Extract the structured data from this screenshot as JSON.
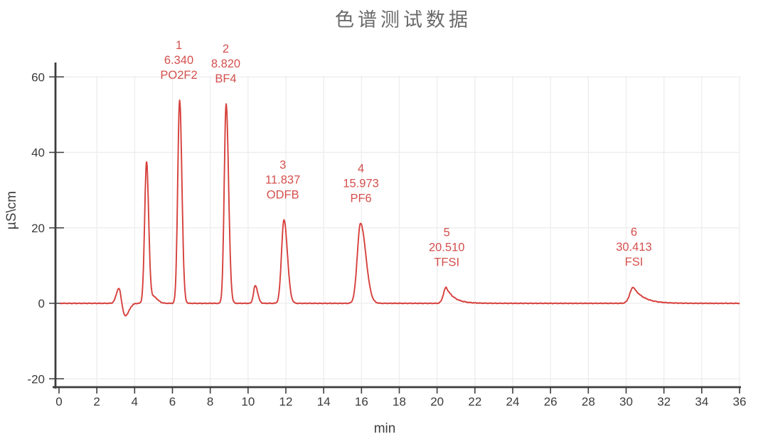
{
  "title": "色谱测试数据",
  "chart_data": {
    "type": "line",
    "title": "色谱测试数据",
    "xlabel": "min",
    "ylabel": "µS\\cm",
    "x_range": [
      0,
      36
    ],
    "y_range": [
      -22,
      64
    ],
    "x_ticks": [
      0,
      2,
      4,
      6,
      8,
      10,
      12,
      14,
      16,
      18,
      20,
      22,
      24,
      26,
      28,
      30,
      32,
      34,
      36
    ],
    "y_ticks": [
      -20,
      0,
      20,
      40,
      60
    ],
    "grid": true,
    "legend": "none",
    "colors": {
      "line": "#d6403c",
      "peak_label": "#d4504d",
      "grid": "#ececec",
      "spine": "#3d3d3f",
      "tick_text": "#3b3b3b",
      "title_text": "#6a6a6a"
    },
    "peaks": [
      {
        "number": "1",
        "retention_time": "6.340",
        "name": "PO2F2",
        "height": 53.8
      },
      {
        "number": "2",
        "retention_time": "8.820",
        "name": "BF4",
        "height": 52.9
      },
      {
        "number": "3",
        "retention_time": "11.837",
        "name": "ODFB",
        "height": 22.1
      },
      {
        "number": "4",
        "retention_time": "15.973",
        "name": "PF6",
        "height": 21.2
      },
      {
        "number": "5",
        "retention_time": "20.510",
        "name": "TFSI",
        "height": 4.25
      },
      {
        "number": "6",
        "retention_time": "30.413",
        "name": "FSI",
        "height": 4.3
      }
    ],
    "trace": {
      "baseline": 0,
      "noise_amplitude": 0.1,
      "features": [
        {
          "c": 3.17,
          "h": 4.0,
          "sl": 0.14,
          "sr": 0.1
        },
        {
          "c": 3.5,
          "h": -3.3,
          "sl": 0.12,
          "sr": 0.2
        },
        {
          "c": 4.63,
          "h": 37.2,
          "sl": 0.1,
          "sr": 0.11
        },
        {
          "c": 4.98,
          "h": 1.8,
          "sl": 0.2,
          "sr": 0.22
        },
        {
          "c": 6.38,
          "h": 53.8,
          "sl": 0.1,
          "sr": 0.12
        },
        {
          "c": 8.84,
          "h": 52.9,
          "sl": 0.1,
          "sr": 0.13
        },
        {
          "c": 10.38,
          "h": 4.7,
          "sl": 0.09,
          "sr": 0.13
        },
        {
          "c": 11.9,
          "h": 22.1,
          "sl": 0.13,
          "sr": 0.18
        },
        {
          "c": 15.95,
          "h": 21.2,
          "sl": 0.17,
          "sr": 0.28
        },
        {
          "c": 20.48,
          "h": 4.25,
          "sl": 0.14,
          "sr": 0.42,
          "exp": true
        },
        {
          "c": 30.38,
          "h": 4.3,
          "sl": 0.18,
          "sr": 0.55,
          "exp": true
        }
      ]
    }
  }
}
